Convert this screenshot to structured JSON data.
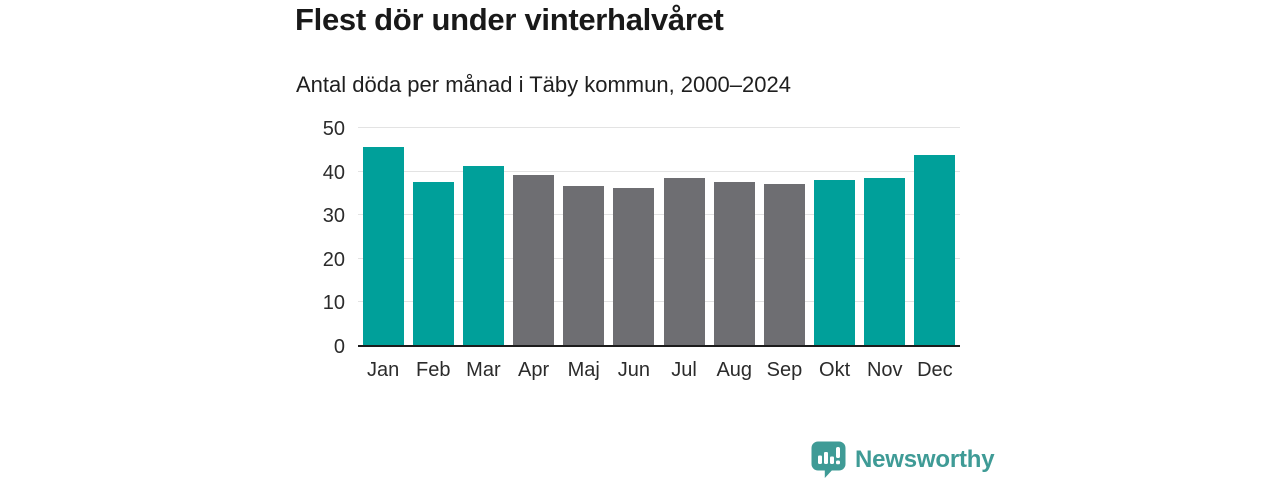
{
  "header": {
    "title": "Flest dör under vinterhalvåret",
    "subtitle": "Antal döda per månad i Täby kommun, 2000–2024"
  },
  "chart_data": {
    "type": "bar",
    "title": "Flest dör under vinterhalvåret",
    "subtitle": "Antal döda per månad i Täby kommun, 2000–2024",
    "categories": [
      "Jan",
      "Feb",
      "Mar",
      "Apr",
      "Maj",
      "Jun",
      "Jul",
      "Aug",
      "Sep",
      "Okt",
      "Nov",
      "Dec"
    ],
    "values": [
      45.5,
      37.3,
      41.0,
      38.9,
      36.4,
      35.9,
      38.2,
      37.3,
      36.9,
      37.8,
      38.3,
      43.5
    ],
    "highlighted": [
      true,
      true,
      true,
      false,
      false,
      false,
      false,
      false,
      false,
      true,
      true,
      true
    ],
    "xlabel": "",
    "ylabel": "",
    "ylim": [
      0,
      50
    ],
    "yticks": [
      0,
      10,
      20,
      30,
      40,
      50
    ],
    "grid": true,
    "legend": "none",
    "colors": {
      "highlight": "#00a09a",
      "base": "#6e6e72",
      "gridline": "#e3e3e3",
      "axis": "#1c1c1c",
      "tick_text": "#2b2b2b"
    }
  },
  "branding": {
    "name": "Newsworthy",
    "color": "#3f9b96",
    "icon": "bar-chart-speech-bubble-icon"
  }
}
